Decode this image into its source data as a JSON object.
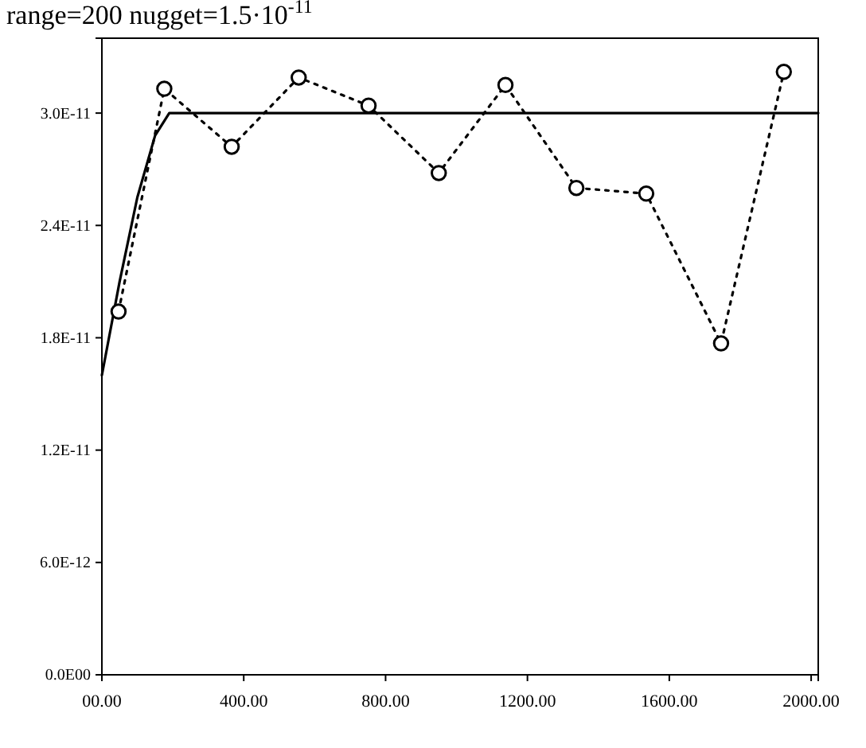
{
  "chart_data": {
    "type": "line",
    "title": "range=200 nugget=1.5·10$^{-11}$",
    "xlim": [
      0,
      2020
    ],
    "ylim": [
      0,
      3.4e-11
    ],
    "xticks": [
      {
        "value": 0,
        "label": "00.00"
      },
      {
        "value": 400,
        "label": "400.00"
      },
      {
        "value": 800,
        "label": "800.00"
      },
      {
        "value": 1200,
        "label": "1200.00"
      },
      {
        "value": 1600,
        "label": "1600.00"
      },
      {
        "value": 2000,
        "label": "2000.00"
      }
    ],
    "yticks": [
      {
        "value": 0,
        "label": "0.0E00"
      },
      {
        "value": 6e-12,
        "label": "6.0E-12"
      },
      {
        "value": 1.2e-11,
        "label": "1.2E-11"
      },
      {
        "value": 1.8e-11,
        "label": "1.8E-11"
      },
      {
        "value": 2.4e-11,
        "label": "2.4E-11"
      },
      {
        "value": 3e-11,
        "label": "3.0E-11"
      }
    ],
    "grid": false,
    "series": [
      {
        "color": "#000000",
        "line_style": "solid",
        "marker": "none",
        "x": [
          0,
          50,
          100,
          150,
          190,
          2020
        ],
        "values": [
          1.6e-11,
          2.1e-11,
          2.55e-11,
          2.88e-11,
          3e-11,
          3e-11
        ]
      },
      {
        "color": "#000000",
        "line_style": "dotted",
        "marker": "circle",
        "x": [
          47,
          176,
          366,
          555,
          752,
          950,
          1138,
          1338,
          1535,
          1746,
          1923
        ],
        "values": [
          1.94e-11,
          3.13e-11,
          2.82e-11,
          3.19e-11,
          3.04e-11,
          2.68e-11,
          3.15e-11,
          2.6e-11,
          2.57e-11,
          1.77e-11,
          3.22e-11
        ]
      }
    ]
  }
}
